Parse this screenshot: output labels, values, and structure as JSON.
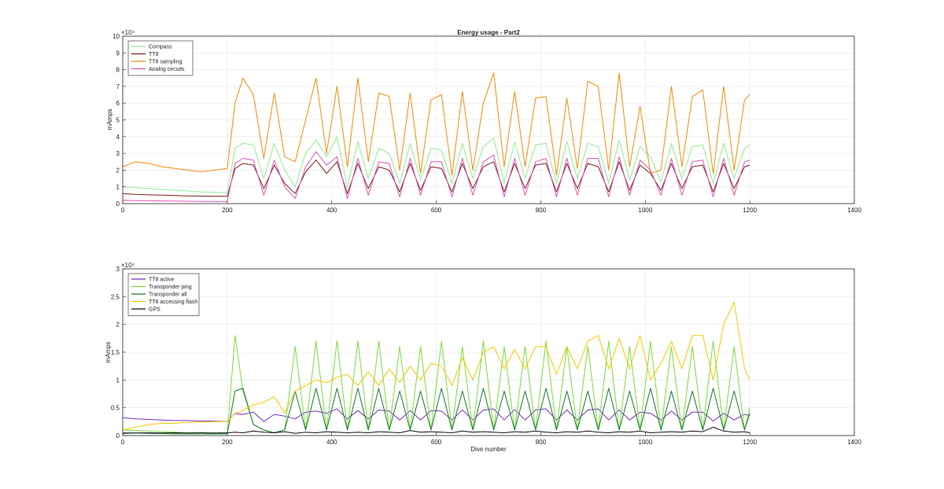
{
  "chart_data": [
    {
      "type": "line",
      "title": "Energy usage - Part2",
      "xlabel": "",
      "ylabel": "mAmps",
      "exponent_label": "×10⁴",
      "xlim": [
        0,
        1400
      ],
      "ylim": [
        0,
        100000
      ],
      "xticks": [
        "0",
        "200",
        "400",
        "600",
        "800",
        "1000",
        "1200",
        "1400"
      ],
      "yticks": [
        "0",
        "1",
        "2",
        "3",
        "4",
        "5",
        "6",
        "7",
        "8",
        "9",
        "10"
      ],
      "grid": true,
      "legend_position": "top-left",
      "x": [
        0,
        25,
        50,
        75,
        100,
        125,
        150,
        175,
        200,
        215,
        230,
        250,
        270,
        290,
        310,
        330,
        350,
        370,
        390,
        410,
        430,
        450,
        470,
        490,
        510,
        530,
        550,
        570,
        590,
        610,
        630,
        650,
        670,
        690,
        710,
        730,
        750,
        770,
        790,
        810,
        830,
        850,
        870,
        890,
        910,
        930,
        950,
        970,
        990,
        1010,
        1030,
        1050,
        1070,
        1090,
        1110,
        1130,
        1150,
        1170,
        1190,
        1200
      ],
      "series": [
        {
          "name": "Compass",
          "color": "#90ee90",
          "values": [
            10000,
            9500,
            9000,
            8500,
            8000,
            7500,
            7000,
            6800,
            6600,
            33000,
            36000,
            35000,
            15000,
            36000,
            20000,
            10000,
            30000,
            38000,
            28000,
            40000,
            10000,
            37000,
            15000,
            33000,
            30000,
            12000,
            36000,
            14000,
            33000,
            32000,
            12000,
            36000,
            15000,
            34000,
            39000,
            12000,
            37000,
            15000,
            35000,
            36000,
            12000,
            37000,
            15000,
            36000,
            34000,
            12000,
            38000,
            14000,
            34000,
            28000,
            13000,
            36000,
            15000,
            34000,
            35000,
            12000,
            36000,
            15000,
            33000,
            35000
          ]
        },
        {
          "name": "TT8",
          "color": "#7b1f1f",
          "values": [
            6000,
            5500,
            5200,
            5000,
            4800,
            4600,
            4500,
            4400,
            4300,
            21000,
            24000,
            23000,
            9000,
            23000,
            12000,
            6000,
            19000,
            26000,
            18000,
            25000,
            6000,
            24000,
            9000,
            22000,
            20000,
            7000,
            24000,
            8000,
            22000,
            21000,
            7000,
            24000,
            9000,
            22000,
            25000,
            7000,
            24000,
            9000,
            23000,
            24000,
            7000,
            24000,
            9000,
            24000,
            22000,
            7000,
            25000,
            8000,
            23000,
            18000,
            8000,
            24000,
            9000,
            22000,
            23000,
            7000,
            24000,
            9000,
            22000,
            23000
          ]
        },
        {
          "name": "TT8 sampling",
          "color": "#f28c0a",
          "values": [
            22000,
            25000,
            24000,
            22000,
            21000,
            20000,
            19000,
            20000,
            21000,
            60000,
            75000,
            65000,
            27000,
            66000,
            28000,
            25000,
            50000,
            75000,
            30000,
            70000,
            22000,
            75000,
            25000,
            66000,
            64000,
            20000,
            66000,
            18000,
            62000,
            65000,
            17000,
            67000,
            20000,
            60000,
            78000,
            22000,
            67000,
            22000,
            63000,
            64000,
            17000,
            63000,
            21000,
            73000,
            70000,
            20000,
            78000,
            22000,
            58000,
            18000,
            20000,
            70000,
            22000,
            64000,
            68000,
            18000,
            70000,
            20000,
            62000,
            65000
          ]
        },
        {
          "name": "Analog circuits",
          "color": "#e055b8",
          "values": [
            2000,
            1800,
            1700,
            1600,
            1500,
            1400,
            1300,
            1300,
            1200,
            24000,
            27000,
            26000,
            5000,
            26000,
            10000,
            3000,
            22000,
            31000,
            23000,
            28000,
            3000,
            27000,
            5000,
            25000,
            24000,
            4000,
            27000,
            5000,
            25000,
            25000,
            4000,
            27000,
            5000,
            25000,
            29000,
            4000,
            27000,
            5000,
            25000,
            27000,
            4000,
            27000,
            5000,
            27000,
            27000,
            4000,
            28000,
            5000,
            26000,
            20000,
            5000,
            27000,
            5000,
            25000,
            26000,
            4000,
            27000,
            5000,
            25000,
            26000
          ]
        }
      ]
    },
    {
      "type": "line",
      "title": "",
      "xlabel": "Dive number",
      "ylabel": "mAmps",
      "exponent_label": "×10⁴",
      "xlim": [
        0,
        1400
      ],
      "ylim": [
        0,
        30000
      ],
      "xticks": [
        "0",
        "200",
        "400",
        "600",
        "800",
        "1000",
        "1200",
        "1400"
      ],
      "yticks": [
        "0",
        "0.5",
        "1",
        "1.5",
        "2",
        "2.5",
        "3"
      ],
      "grid": true,
      "legend_position": "top-left",
      "x": [
        0,
        25,
        50,
        75,
        100,
        125,
        150,
        175,
        200,
        215,
        230,
        250,
        270,
        290,
        310,
        330,
        350,
        370,
        390,
        410,
        430,
        450,
        470,
        490,
        510,
        530,
        550,
        570,
        590,
        610,
        630,
        650,
        670,
        690,
        710,
        730,
        750,
        770,
        790,
        810,
        830,
        850,
        870,
        890,
        910,
        930,
        950,
        970,
        990,
        1010,
        1030,
        1050,
        1070,
        1090,
        1110,
        1130,
        1150,
        1170,
        1190,
        1200
      ],
      "series": [
        {
          "name": "TT8 active",
          "color": "#7e2fbf",
          "values": [
            3200,
            3000,
            2900,
            2800,
            2700,
            2700,
            2600,
            2600,
            2500,
            4000,
            3800,
            4200,
            2500,
            3800,
            3500,
            3000,
            4200,
            4400,
            4000,
            4800,
            3000,
            4500,
            3000,
            4600,
            4400,
            2800,
            4500,
            2800,
            4500,
            4400,
            2800,
            4600,
            2800,
            4600,
            4800,
            2800,
            4700,
            2800,
            4600,
            4800,
            2800,
            4600,
            2800,
            4600,
            4800,
            2800,
            4600,
            2800,
            4200,
            4000,
            2800,
            4400,
            2800,
            4200,
            4200,
            2600,
            4000,
            2800,
            3800,
            3600
          ]
        },
        {
          "name": "Transponder ping",
          "color": "#7cdc3c",
          "values": [
            1000,
            900,
            800,
            700,
            600,
            500,
            500,
            400,
            400,
            18000,
            8000,
            2000,
            1000,
            500,
            1000,
            16000,
            1000,
            17000,
            1000,
            17000,
            1000,
            17000,
            1000,
            17000,
            1000,
            16000,
            1000,
            16000,
            1000,
            17000,
            1000,
            16000,
            1000,
            17000,
            1000,
            16000,
            1000,
            16000,
            1000,
            17000,
            1000,
            16000,
            1000,
            16000,
            1000,
            17000,
            1000,
            16000,
            1000,
            17000,
            1000,
            16000,
            1000,
            16000,
            1000,
            17000,
            1000,
            16000,
            1000,
            5000
          ]
        },
        {
          "name": "Transponder all",
          "color": "#1a7a32",
          "values": [
            500,
            450,
            400,
            350,
            300,
            300,
            300,
            300,
            300,
            8000,
            8500,
            2000,
            1000,
            500,
            1000,
            8000,
            1000,
            8500,
            1000,
            8500,
            1000,
            8500,
            1000,
            8500,
            1000,
            8000,
            1000,
            8000,
            1000,
            8500,
            1000,
            8000,
            1000,
            8500,
            1000,
            8000,
            1000,
            8000,
            1000,
            8500,
            1000,
            8000,
            1000,
            8000,
            1000,
            8500,
            1000,
            8000,
            1000,
            8500,
            1000,
            8000,
            1000,
            8000,
            1000,
            8500,
            1000,
            8000,
            1000,
            4000
          ]
        },
        {
          "name": "TT8 accessing flash",
          "color": "#f5c800",
          "values": [
            1000,
            1500,
            2000,
            2200,
            2200,
            2400,
            2400,
            2500,
            2500,
            4000,
            4500,
            5500,
            6000,
            7000,
            4000,
            8000,
            9000,
            10000,
            9500,
            10500,
            11000,
            9000,
            11500,
            9000,
            12000,
            9500,
            12500,
            10000,
            13000,
            12500,
            9000,
            14000,
            10000,
            15000,
            16000,
            12000,
            15500,
            12000,
            16000,
            16000,
            11000,
            16000,
            12000,
            17000,
            18000,
            12000,
            17500,
            12000,
            18000,
            10000,
            13000,
            17000,
            12000,
            18000,
            18000,
            10000,
            20000,
            24000,
            12000,
            10000
          ]
        },
        {
          "name": "GPS",
          "color": "#111111",
          "values": [
            400,
            450,
            500,
            450,
            500,
            450,
            500,
            450,
            500,
            600,
            500,
            800,
            600,
            500,
            700,
            400,
            600,
            500,
            700,
            600,
            500,
            600,
            500,
            700,
            600,
            500,
            900,
            600,
            700,
            600,
            500,
            800,
            600,
            700,
            600,
            500,
            700,
            600,
            800,
            600,
            500,
            700,
            600,
            800,
            600,
            500,
            700,
            600,
            800,
            500,
            600,
            700,
            600,
            800,
            700,
            1500,
            800,
            600,
            700,
            500
          ]
        }
      ]
    }
  ]
}
